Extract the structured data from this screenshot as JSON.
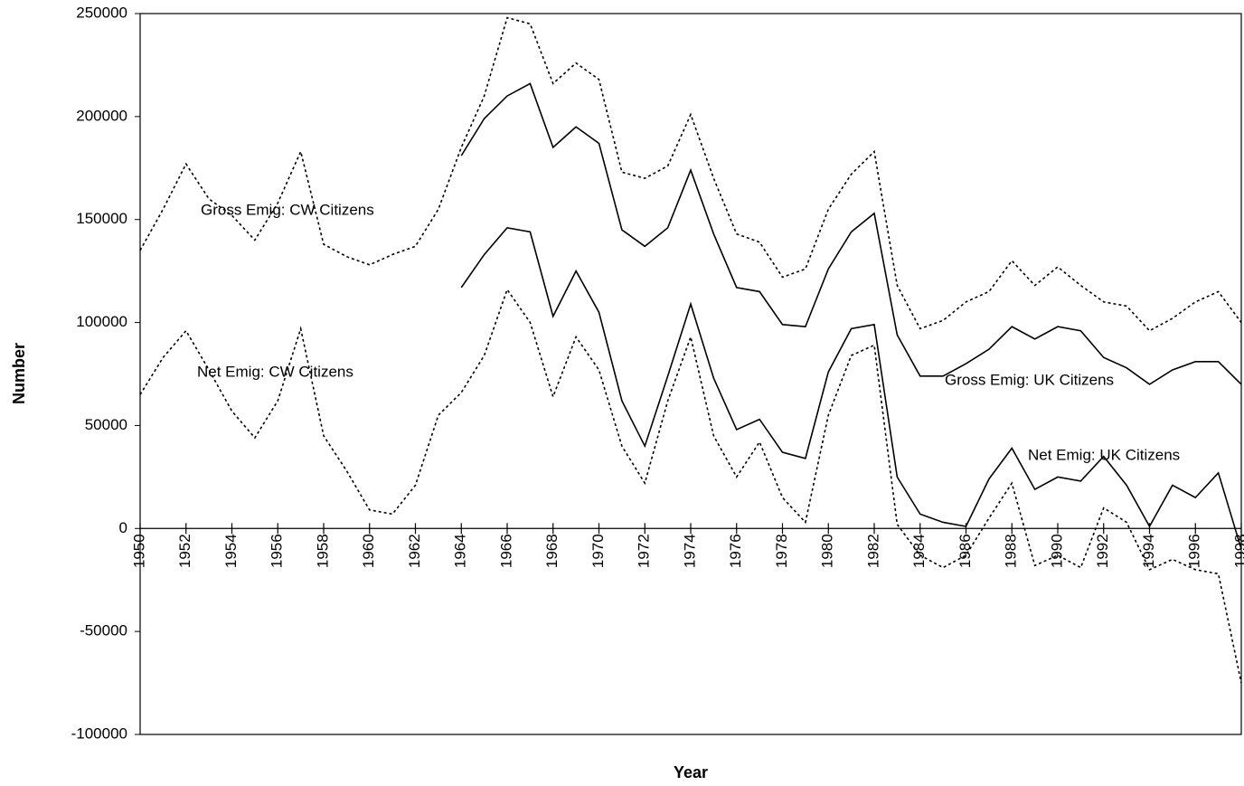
{
  "chart_data": {
    "type": "line",
    "xlabel": "Year",
    "ylabel": "Number",
    "xlim": [
      1950,
      1998
    ],
    "xticks": [
      1950,
      1952,
      1954,
      1956,
      1958,
      1960,
      1962,
      1964,
      1966,
      1968,
      1970,
      1972,
      1974,
      1976,
      1978,
      1980,
      1982,
      1984,
      1986,
      1988,
      1990,
      1992,
      1994,
      1996,
      1998
    ],
    "ylim": [
      -100000,
      250000
    ],
    "yticks": [
      -100000,
      -50000,
      0,
      50000,
      100000,
      150000,
      200000,
      250000
    ],
    "grid": false,
    "series": [
      {
        "name": "Gross Emig: CW Citizens",
        "color": "#000000",
        "line_style": "dotted",
        "x": [
          1950,
          1951,
          1952,
          1953,
          1954,
          1955,
          1956,
          1957,
          1958,
          1959,
          1960,
          1961,
          1962,
          1963,
          1964,
          1965,
          1966,
          1967,
          1968,
          1969,
          1970,
          1971,
          1972,
          1973,
          1974,
          1975,
          1976,
          1977,
          1978,
          1979,
          1980,
          1981,
          1982,
          1983,
          1984,
          1985,
          1986,
          1987,
          1988,
          1989,
          1990,
          1991,
          1992,
          1993,
          1994,
          1995,
          1996,
          1997,
          1998
        ],
        "values": [
          135000,
          155000,
          177000,
          160000,
          152000,
          140000,
          158000,
          183000,
          138000,
          132000,
          128000,
          133000,
          137000,
          155000,
          185000,
          210000,
          248000,
          245000,
          216000,
          226000,
          218000,
          173000,
          170000,
          176000,
          201000,
          170000,
          143000,
          139000,
          122000,
          126000,
          155000,
          172000,
          183000,
          118000,
          97000,
          101000,
          110000,
          115000,
          130000,
          118000,
          127000,
          118000,
          110000,
          108000,
          96000,
          102000,
          110000,
          115000,
          100000
        ]
      },
      {
        "name": "Net Emig: CW Citizens",
        "color": "#000000",
        "line_style": "dotted",
        "x": [
          1950,
          1951,
          1952,
          1953,
          1954,
          1955,
          1956,
          1957,
          1958,
          1959,
          1960,
          1961,
          1962,
          1963,
          1964,
          1965,
          1966,
          1967,
          1968,
          1969,
          1970,
          1971,
          1972,
          1973,
          1974,
          1975,
          1976,
          1977,
          1978,
          1979,
          1980,
          1981,
          1982,
          1983,
          1984,
          1985,
          1986,
          1987,
          1988,
          1989,
          1990,
          1991,
          1992,
          1993,
          1994,
          1995,
          1996,
          1997,
          1998
        ],
        "values": [
          65000,
          83000,
          96000,
          77000,
          57000,
          44000,
          62000,
          97000,
          45000,
          28000,
          9000,
          7000,
          21000,
          55000,
          66000,
          84000,
          116000,
          100000,
          64000,
          93000,
          77000,
          40000,
          22000,
          62000,
          93000,
          45000,
          25000,
          42000,
          15000,
          3000,
          55000,
          84000,
          89000,
          2000,
          -13000,
          -19000,
          -13000,
          5000,
          22000,
          -18000,
          -13000,
          -19000,
          10000,
          3000,
          -20000,
          -15000,
          -20000,
          -22000,
          -75000
        ]
      },
      {
        "name": "Gross Emig: UK Citizens",
        "color": "#000000",
        "line_style": "solid",
        "x": [
          1964,
          1965,
          1966,
          1967,
          1968,
          1969,
          1970,
          1971,
          1972,
          1973,
          1974,
          1975,
          1976,
          1977,
          1978,
          1979,
          1980,
          1981,
          1982,
          1983,
          1984,
          1985,
          1986,
          1987,
          1988,
          1989,
          1990,
          1991,
          1992,
          1993,
          1994,
          1995,
          1996,
          1997,
          1998
        ],
        "values": [
          181000,
          199000,
          210000,
          216000,
          185000,
          195000,
          187000,
          145000,
          137000,
          146000,
          174000,
          143000,
          117000,
          115000,
          99000,
          98000,
          126000,
          144000,
          153000,
          94000,
          74000,
          74000,
          80000,
          87000,
          98000,
          92000,
          98000,
          96000,
          83000,
          78000,
          70000,
          77000,
          81000,
          81000,
          70000
        ]
      },
      {
        "name": "Net Emig: UK Citizens",
        "color": "#000000",
        "line_style": "solid",
        "x": [
          1964,
          1965,
          1966,
          1967,
          1968,
          1969,
          1970,
          1971,
          1972,
          1973,
          1974,
          1975,
          1976,
          1977,
          1978,
          1979,
          1980,
          1981,
          1982,
          1983,
          1984,
          1985,
          1986,
          1987,
          1988,
          1989,
          1990,
          1991,
          1992,
          1993,
          1994,
          1995,
          1996,
          1997,
          1998
        ],
        "values": [
          117000,
          133000,
          146000,
          144000,
          103000,
          125000,
          105000,
          62000,
          40000,
          74000,
          109000,
          73000,
          48000,
          53000,
          37000,
          34000,
          76000,
          97000,
          99000,
          25000,
          7000,
          3000,
          1000,
          24000,
          39000,
          19000,
          25000,
          23000,
          35000,
          21000,
          1000,
          21000,
          15000,
          27000,
          -10000
        ]
      }
    ]
  }
}
